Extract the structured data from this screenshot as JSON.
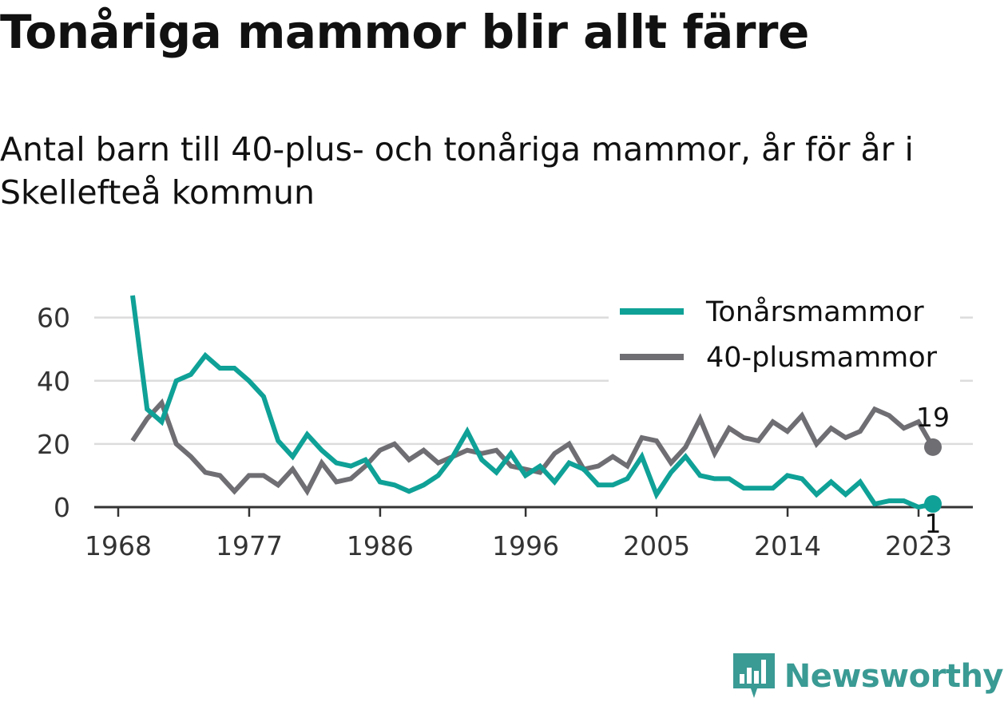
{
  "header": {
    "title": "Tonåriga mammor blir allt färre",
    "subtitle": "Antal barn till 40-plus- och tonåriga mammor, år för år i Skellefteå kommun"
  },
  "brand": {
    "name": "Newsworthy"
  },
  "colors": {
    "teen": "#0fa197",
    "forty": "#6e6e73",
    "grid": "#dcdcdc",
    "axis": "#333333",
    "logo": "#3a9a94"
  },
  "chart_data": {
    "type": "line",
    "x": [
      1968,
      1969,
      1970,
      1971,
      1972,
      1973,
      1974,
      1975,
      1976,
      1977,
      1978,
      1979,
      1980,
      1981,
      1982,
      1983,
      1984,
      1985,
      1986,
      1987,
      1988,
      1989,
      1990,
      1991,
      1992,
      1993,
      1994,
      1995,
      1996,
      1997,
      1998,
      1999,
      2000,
      2001,
      2002,
      2003,
      2004,
      2005,
      2006,
      2007,
      2008,
      2009,
      2010,
      2011,
      2012,
      2013,
      2014,
      2015,
      2016,
      2017,
      2018,
      2019,
      2020,
      2021,
      2022,
      2023
    ],
    "series": [
      {
        "name": "Tonårsmammor",
        "values": [
          67,
          31,
          27,
          40,
          42,
          48,
          44,
          44,
          40,
          35,
          21,
          16,
          23,
          18,
          14,
          13,
          15,
          8,
          7,
          5,
          7,
          10,
          16,
          24,
          15,
          11,
          17,
          10,
          13,
          8,
          14,
          12,
          7,
          7,
          9,
          16,
          4,
          11,
          16,
          10,
          9,
          9,
          6,
          6,
          6,
          10,
          9,
          4,
          8,
          4,
          8,
          1,
          2,
          2,
          0,
          1
        ]
      },
      {
        "name": "40-plusmammor",
        "values": [
          21,
          28,
          33,
          20,
          16,
          11,
          10,
          5,
          10,
          10,
          7,
          12,
          5,
          14,
          8,
          9,
          13,
          18,
          20,
          15,
          18,
          14,
          16,
          18,
          17,
          18,
          13,
          12,
          11,
          17,
          20,
          12,
          13,
          16,
          13,
          22,
          21,
          14,
          19,
          28,
          17,
          25,
          22,
          21,
          27,
          24,
          29,
          20,
          25,
          22,
          24,
          31,
          29,
          25,
          27,
          19
        ]
      }
    ],
    "end_labels": [
      "1",
      "19"
    ],
    "x_ticks": [
      "1968",
      "1977",
      "1986",
      "1996",
      "2005",
      "2014",
      "2023"
    ],
    "x_tick_values": [
      1968,
      1977,
      1986,
      1996,
      2005,
      2014,
      2023
    ],
    "y_ticks": [
      "0",
      "20",
      "40",
      "60"
    ],
    "y_tick_values": [
      0,
      20,
      40,
      60
    ],
    "ylim": [
      0,
      67
    ],
    "xlim": [
      1968,
      2023
    ],
    "xlabel": "",
    "ylabel": "",
    "legend_position": "top-right",
    "grid": true
  }
}
